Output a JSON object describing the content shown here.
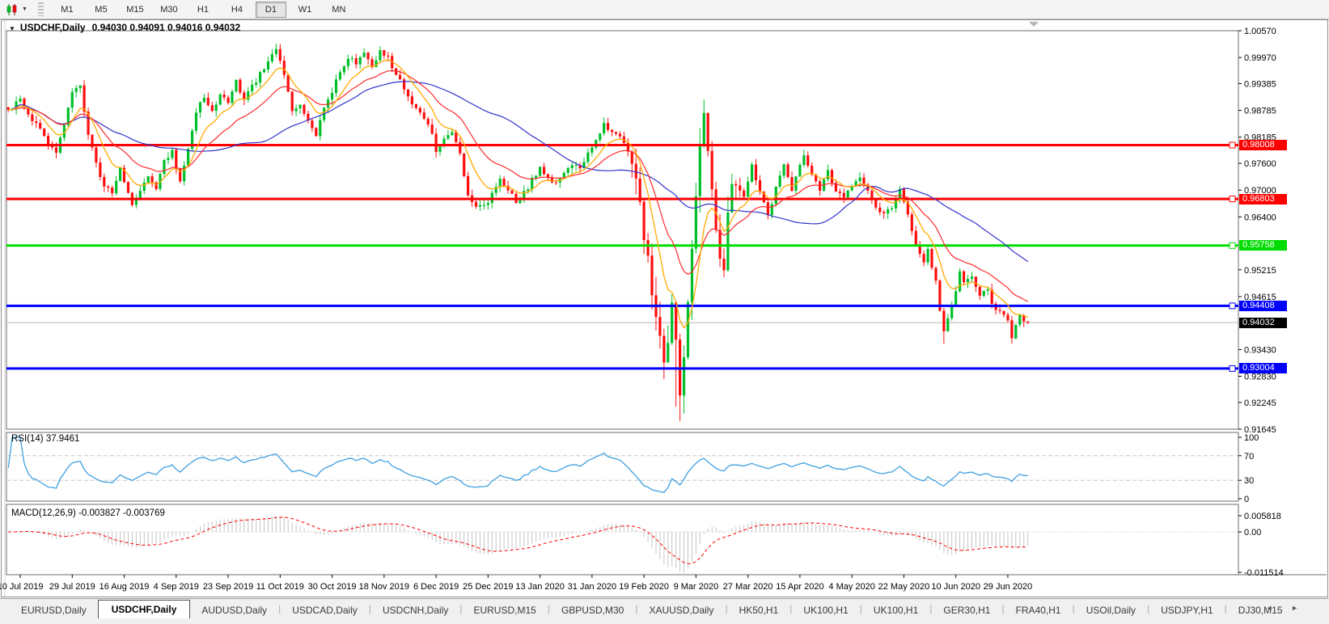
{
  "toolbar": {
    "timeframes": [
      "M1",
      "M5",
      "M15",
      "M30",
      "H1",
      "H4",
      "D1",
      "W1",
      "MN"
    ],
    "active_timeframe": "D1",
    "chart_type_icon": "candlestick-chart-icon",
    "dropdown_icon": "chevron-down"
  },
  "chart_window": {
    "title": "USDCHF,Daily",
    "ohlc_line": "0.94030 0.94091 0.94016 0.94032"
  },
  "indicators": {
    "rsi": {
      "label": "RSI(14) 37.9461",
      "levels": [
        "100",
        "70",
        "30",
        "0"
      ],
      "line_color": "#3f9fe0"
    },
    "macd": {
      "label": "MACD(12,26,9) -0.003827 -0.003769",
      "axis_labels": [
        "0.005818",
        "0.00",
        "-0.011514"
      ],
      "histogram_color": "#c4c4c4",
      "signal_color": "#ff0000"
    }
  },
  "tabs": {
    "items": [
      {
        "label": "EURUSD,Daily",
        "active": false
      },
      {
        "label": "USDCHF,Daily",
        "active": true
      },
      {
        "label": "AUDUSD,Daily",
        "active": false
      },
      {
        "label": "USDCAD,Daily",
        "active": false
      },
      {
        "label": "USDCNH,Daily",
        "active": false
      },
      {
        "label": "EURUSD,M15",
        "active": false
      },
      {
        "label": "GBPUSD,M30",
        "active": false
      },
      {
        "label": "XAUUSD,Daily",
        "active": false
      },
      {
        "label": "HK50,H1",
        "active": false
      },
      {
        "label": "UK100,H1",
        "active": false
      },
      {
        "label": "UK100,H1",
        "active": false
      },
      {
        "label": "GER30,H1",
        "active": false
      },
      {
        "label": "FRA40,H1",
        "active": false
      },
      {
        "label": "USOil,Daily",
        "active": false
      },
      {
        "label": "USDJPY,H1",
        "active": false
      },
      {
        "label": "DJ30,M15",
        "active": false
      }
    ],
    "scroll_left": "◄",
    "scroll_right": "►"
  },
  "chart_data": {
    "type": "candlestick",
    "symbol": "USDCHF",
    "timeframe": "Daily",
    "x_axis": {
      "labels": [
        "10 Jul 2019",
        "29 Jul 2019",
        "16 Aug 2019",
        "4 Sep 2019",
        "23 Sep 2019",
        "11 Oct 2019",
        "30 Oct 2019",
        "18 Nov 2019",
        "6 Dec 2019",
        "25 Dec 2019",
        "13 Jan 2020",
        "31 Jan 2020",
        "19 Feb 2020",
        "9 Mar 2020",
        "27 Mar 2020",
        "15 Apr 2020",
        "4 May 2020",
        "22 May 2020",
        "10 Jun 2020",
        "29 Jun 2020"
      ],
      "first_label_candle_index": 3,
      "candles_per_label": 13
    },
    "y_axis": {
      "ticks": [
        "1.00570",
        "0.99970",
        "0.99385",
        "0.98785",
        "0.98185",
        "0.97600",
        "0.97000",
        "0.96400",
        "0.95215",
        "0.94615",
        "0.93430",
        "0.92830",
        "0.92245",
        "0.91645"
      ],
      "top_value": 1.0057,
      "bottom_value": 0.91645
    },
    "levels": [
      {
        "value": 0.98008,
        "label": "0.98008",
        "color": "#ff0000"
      },
      {
        "value": 0.96803,
        "label": "0.96803",
        "color": "#ff0000"
      },
      {
        "value": 0.95758,
        "label": "0.95758",
        "color": "#00dc00"
      },
      {
        "value": 0.94408,
        "label": "0.94408",
        "color": "#0000ff"
      },
      {
        "value": 0.93004,
        "label": "0.93004",
        "color": "#0000ff"
      }
    ],
    "current_price": {
      "value": 0.94032,
      "label": "0.94032"
    },
    "candle_count": 256,
    "close_waypoints": [
      [
        0,
        0.988
      ],
      [
        3,
        0.9902
      ],
      [
        5,
        0.9868
      ],
      [
        8,
        0.9838
      ],
      [
        10,
        0.9795
      ],
      [
        12,
        0.9788
      ],
      [
        14,
        0.9852
      ],
      [
        16,
        0.9918
      ],
      [
        18,
        0.9938
      ],
      [
        20,
        0.982
      ],
      [
        22,
        0.9762
      ],
      [
        24,
        0.9705
      ],
      [
        26,
        0.9698
      ],
      [
        28,
        0.9748
      ],
      [
        30,
        0.97
      ],
      [
        31,
        0.9668
      ],
      [
        33,
        0.9702
      ],
      [
        35,
        0.9732
      ],
      [
        37,
        0.9705
      ],
      [
        39,
        0.9762
      ],
      [
        41,
        0.9788
      ],
      [
        43,
        0.9715
      ],
      [
        45,
        0.979
      ],
      [
        47,
        0.9878
      ],
      [
        49,
        0.9908
      ],
      [
        51,
        0.9872
      ],
      [
        53,
        0.9918
      ],
      [
        55,
        0.9898
      ],
      [
        57,
        0.9942
      ],
      [
        59,
        0.9908
      ],
      [
        61,
        0.9932
      ],
      [
        63,
        0.9958
      ],
      [
        65,
        0.9992
      ],
      [
        67,
        1.0018
      ],
      [
        69,
        0.9958
      ],
      [
        71,
        0.9872
      ],
      [
        73,
        0.9895
      ],
      [
        75,
        0.9852
      ],
      [
        77,
        0.9822
      ],
      [
        79,
        0.9882
      ],
      [
        81,
        0.9922
      ],
      [
        83,
        0.9968
      ],
      [
        85,
        0.9998
      ],
      [
        87,
        0.9988
      ],
      [
        89,
        1.0008
      ],
      [
        91,
        0.9982
      ],
      [
        93,
        1.0012
      ],
      [
        95,
        0.9998
      ],
      [
        97,
        0.9958
      ],
      [
        99,
        0.9928
      ],
      [
        101,
        0.9898
      ],
      [
        103,
        0.9868
      ],
      [
        105,
        0.9848
      ],
      [
        107,
        0.9792
      ],
      [
        109,
        0.9812
      ],
      [
        111,
        0.9832
      ],
      [
        113,
        0.9778
      ],
      [
        115,
        0.9692
      ],
      [
        117,
        0.9665
      ],
      [
        119,
        0.9662
      ],
      [
        121,
        0.9692
      ],
      [
        123,
        0.9722
      ],
      [
        125,
        0.97
      ],
      [
        127,
        0.9672
      ],
      [
        129,
        0.9692
      ],
      [
        131,
        0.9722
      ],
      [
        133,
        0.9748
      ],
      [
        135,
        0.973
      ],
      [
        137,
        0.9716
      ],
      [
        139,
        0.9742
      ],
      [
        141,
        0.9762
      ],
      [
        143,
        0.9745
      ],
      [
        145,
        0.9778
      ],
      [
        147,
        0.9812
      ],
      [
        149,
        0.9845
      ],
      [
        151,
        0.9832
      ],
      [
        153,
        0.9825
      ],
      [
        155,
        0.979
      ],
      [
        157,
        0.9718
      ],
      [
        159,
        0.9598
      ],
      [
        161,
        0.9478
      ],
      [
        163,
        0.9375
      ],
      [
        164,
        0.9302
      ],
      [
        166,
        0.9445
      ],
      [
        167,
        0.9355
      ],
      [
        168,
        0.9252
      ],
      [
        169,
        0.9315
      ],
      [
        170,
        0.9455
      ],
      [
        171,
        0.9555
      ],
      [
        172,
        0.9685
      ],
      [
        173,
        0.9795
      ],
      [
        174,
        0.9862
      ],
      [
        175,
        0.9798
      ],
      [
        176,
        0.9698
      ],
      [
        177,
        0.9618
      ],
      [
        178,
        0.9558
      ],
      [
        179,
        0.9528
      ],
      [
        180,
        0.9645
      ],
      [
        181,
        0.9702
      ],
      [
        182,
        0.9722
      ],
      [
        184,
        0.9682
      ],
      [
        186,
        0.9752
      ],
      [
        188,
        0.97
      ],
      [
        190,
        0.9642
      ],
      [
        192,
        0.9702
      ],
      [
        194,
        0.9762
      ],
      [
        196,
        0.9702
      ],
      [
        198,
        0.9762
      ],
      [
        199,
        0.9782
      ],
      [
        201,
        0.9732
      ],
      [
        203,
        0.97
      ],
      [
        205,
        0.9745
      ],
      [
        207,
        0.97
      ],
      [
        209,
        0.9682
      ],
      [
        211,
        0.9705
      ],
      [
        213,
        0.9732
      ],
      [
        215,
        0.97
      ],
      [
        217,
        0.9662
      ],
      [
        219,
        0.9642
      ],
      [
        221,
        0.9665
      ],
      [
        223,
        0.97
      ],
      [
        225,
        0.9642
      ],
      [
        227,
        0.9572
      ],
      [
        229,
        0.9532
      ],
      [
        230,
        0.9562
      ],
      [
        232,
        0.9502
      ],
      [
        233,
        0.9432
      ],
      [
        234,
        0.9382
      ],
      [
        236,
        0.9442
      ],
      [
        238,
        0.9516
      ],
      [
        239,
        0.9492
      ],
      [
        241,
        0.9502
      ],
      [
        243,
        0.9467
      ],
      [
        245,
        0.9482
      ],
      [
        246,
        0.9442
      ],
      [
        248,
        0.9432
      ],
      [
        250,
        0.9402
      ],
      [
        251,
        0.9372
      ],
      [
        253,
        0.9418
      ],
      [
        254,
        0.9408
      ],
      [
        255,
        0.94032
      ]
    ],
    "high_volatility_range": [
      156,
      183
    ],
    "wick_extremes": {
      "67": [
        1.0028,
        null
      ],
      "163": [
        null,
        0.9345
      ],
      "167": [
        null,
        0.9215
      ],
      "168": [
        null,
        0.9183
      ],
      "174": [
        0.9897,
        null
      ],
      "234": [
        null,
        0.9356
      ],
      "251": [
        null,
        0.9356
      ]
    },
    "moving_averages": [
      {
        "name": "fast",
        "type": "ema",
        "period": 9,
        "color": "#ffaa00"
      },
      {
        "name": "mid",
        "type": "ema",
        "period": 21,
        "color": "#ff2a2a"
      },
      {
        "name": "slow",
        "type": "sma",
        "period": 45,
        "color": "#3333cc"
      }
    ],
    "colors": {
      "up_candle": "#00bf2a",
      "down_candle": "#fe0d0d",
      "current_price_line": "#b8b8b8",
      "rsi_level_dash": "#c8c8c8"
    }
  }
}
